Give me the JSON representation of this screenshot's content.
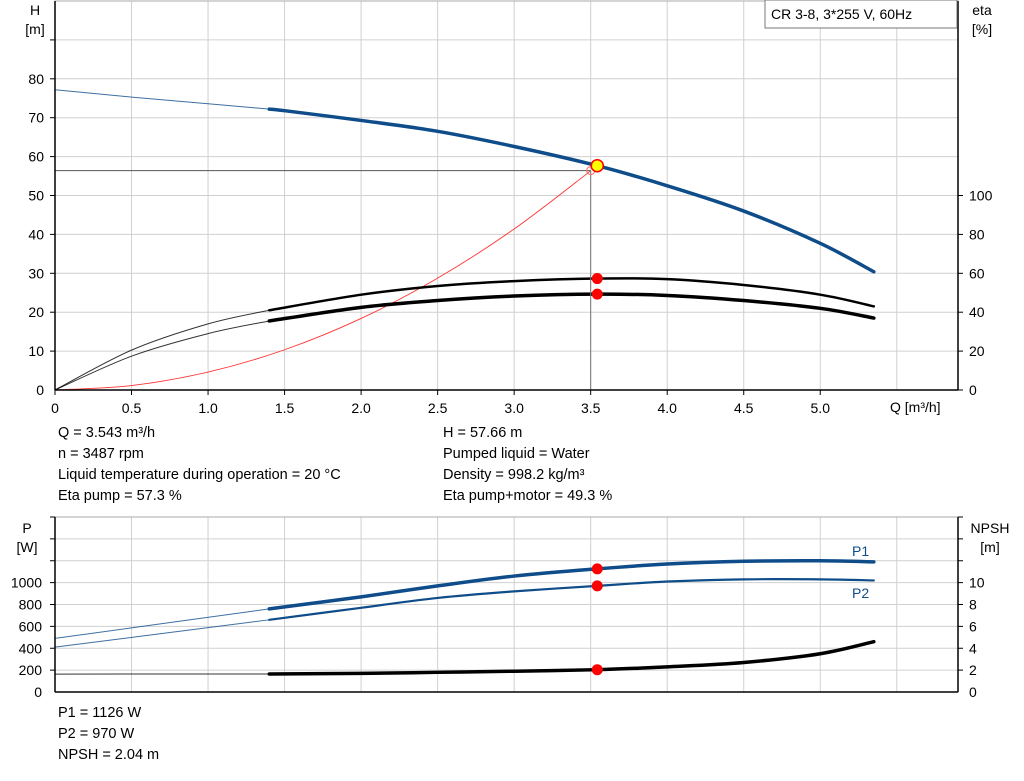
{
  "chart_data": [
    {
      "type": "line",
      "legend_box": "CR 3-8, 3*255 V, 60Hz",
      "xlabel": "Q [m³/h]",
      "ylabel_left": {
        "name": "H",
        "unit": "[m]"
      },
      "ylabel_right": {
        "name": "eta",
        "unit": "[%]"
      },
      "xlim": [
        0,
        5.9
      ],
      "ylim_left": [
        0,
        100
      ],
      "ylim_right": [
        0,
        200
      ],
      "x_ticks": [
        "0",
        "0.5",
        "1.0",
        "1.5",
        "2.0",
        "2.5",
        "3.0",
        "3.5",
        "4.0",
        "4.5",
        "5.0"
      ],
      "y_ticks_left": [
        "0",
        "10",
        "20",
        "30",
        "40",
        "50",
        "60",
        "70",
        "80"
      ],
      "y_ticks_right": [
        "0",
        "20",
        "40",
        "60",
        "80",
        "100"
      ],
      "grid": true,
      "series": [
        {
          "key": "head",
          "axis": "left",
          "color": "#0e4c8a",
          "x": [
            0,
            0.5,
            1.0,
            1.4,
            1.5,
            2.0,
            2.5,
            3.0,
            3.543,
            4.0,
            4.5,
            5.0,
            5.35
          ],
          "y": [
            77.2,
            75.3,
            73.6,
            72.2,
            71.8,
            69.3,
            66.5,
            62.6,
            57.66,
            52.5,
            46.0,
            37.7,
            30.4
          ]
        },
        {
          "key": "eta_pump",
          "axis": "right",
          "color": "#000000",
          "x": [
            0,
            0.5,
            1.0,
            1.4,
            2.0,
            2.5,
            3.0,
            3.543,
            4.0,
            4.5,
            5.0,
            5.35
          ],
          "y": [
            0,
            20.5,
            34,
            41,
            49,
            53.5,
            56,
            57.3,
            57,
            54,
            49,
            43
          ]
        },
        {
          "key": "eta_pump_motor",
          "axis": "right",
          "color": "#000000",
          "x": [
            0,
            0.5,
            1.0,
            1.4,
            2.0,
            2.5,
            3.0,
            3.543,
            4.0,
            4.5,
            5.0,
            5.35
          ],
          "y": [
            0,
            17.4,
            29,
            35.5,
            42.5,
            46,
            48.3,
            49.3,
            48.6,
            46,
            42,
            37
          ]
        },
        {
          "key": "system_curve",
          "axis": "left",
          "color": "#ff3333",
          "x": [
            0,
            0.5,
            1.0,
            1.5,
            2.0,
            2.5,
            3.0,
            3.5
          ],
          "y": [
            0,
            1.15,
            4.6,
            10.35,
            18.4,
            28.75,
            41.4,
            56.35
          ]
        }
      ],
      "duty_point": {
        "Q": 3.543,
        "H": 57.66,
        "eta_pump": 57.3,
        "eta_pump_motor": 49.3
      },
      "requested_point": {
        "Q": 3.5,
        "H": 56.4
      }
    },
    {
      "type": "line",
      "xlim": [
        0,
        5.9
      ],
      "ylabel_left": {
        "name": "P",
        "unit": "[W]"
      },
      "ylabel_right": {
        "name": "NPSH",
        "unit": "[m]"
      },
      "ylim_left": [
        0,
        1600
      ],
      "ylim_right": [
        0,
        16
      ],
      "y_ticks_left": [
        "0",
        "200",
        "400",
        "600",
        "800",
        "1000"
      ],
      "y_ticks_right": [
        "0",
        "2",
        "4",
        "6",
        "8",
        "10"
      ],
      "grid": true,
      "series": [
        {
          "key": "P1",
          "name": "P1",
          "axis": "left",
          "color": "#0e4c8a",
          "x": [
            0,
            1.4,
            2.0,
            2.5,
            3.0,
            3.543,
            4.0,
            4.5,
            5.0,
            5.35
          ],
          "y": [
            490,
            760,
            870,
            970,
            1060,
            1126,
            1170,
            1195,
            1200,
            1190
          ]
        },
        {
          "key": "P2",
          "name": "P2",
          "axis": "left",
          "color": "#0e4c8a",
          "x": [
            0,
            1.4,
            2.0,
            2.5,
            3.0,
            3.543,
            4.0,
            4.5,
            5.0,
            5.35
          ],
          "y": [
            410,
            660,
            770,
            860,
            920,
            970,
            1010,
            1030,
            1030,
            1020
          ]
        },
        {
          "key": "NPSH",
          "axis": "right",
          "color": "#000000",
          "x": [
            0,
            1.4,
            2.0,
            2.5,
            3.0,
            3.543,
            4.0,
            4.5,
            5.0,
            5.35
          ],
          "y": [
            1.64,
            1.65,
            1.7,
            1.8,
            1.9,
            2.04,
            2.3,
            2.7,
            3.5,
            4.6
          ]
        }
      ],
      "duty_point": {
        "Q": 3.543,
        "P1": 1126,
        "P2": 970,
        "NPSH": 2.04
      }
    }
  ],
  "info_top": {
    "col1": [
      "Q = 3.543 m³/h",
      "n = 3487 rpm",
      "Liquid temperature during operation = 20 °C",
      "Eta pump = 57.3 %"
    ],
    "col2": [
      "H = 57.66 m",
      "Pumped liquid = Water",
      "Density = 998.2 kg/m³",
      "Eta pump+motor = 49.3 %"
    ]
  },
  "info_bottom": [
    "P1 = 1126 W",
    "P2 = 970 W",
    "NPSH = 2.04 m"
  ]
}
